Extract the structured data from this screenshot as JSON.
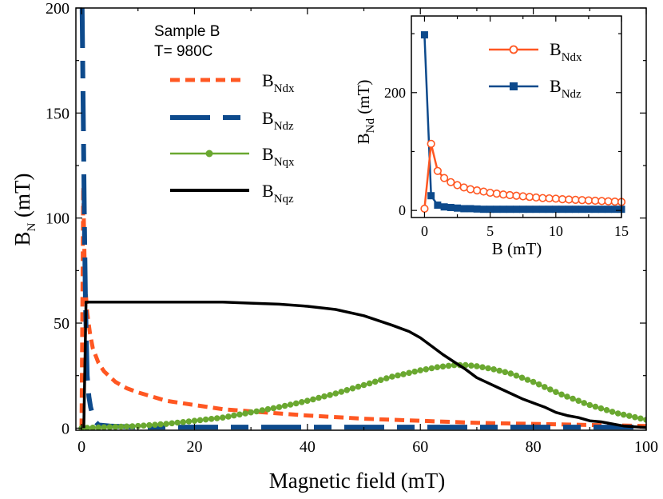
{
  "chart_data": [
    {
      "type": "line",
      "annotation_lines": [
        "Sample B",
        "T= 980C"
      ],
      "xlabel": "Magnetic field (mT)",
      "ylabel": {
        "main": "B",
        "sub": "N",
        "rest": " (mT)"
      },
      "xlim": [
        -1,
        100
      ],
      "ylim": [
        -1,
        200
      ],
      "xticks": [
        0,
        20,
        40,
        60,
        80,
        100
      ],
      "yticks": [
        0,
        50,
        100,
        150,
        200
      ],
      "xtick_labels": [
        "0",
        "20",
        "40",
        "60",
        "80",
        "100"
      ],
      "ytick_labels": [
        "0",
        "50",
        "100",
        "150",
        "200"
      ],
      "legend_location": "upper-left",
      "series": [
        {
          "name": "B_Ndx",
          "label_main": "B",
          "label_sub": "Ndx",
          "color": "#ff5722",
          "style": "dotted",
          "x": [
            0,
            0.3,
            0.6,
            1.0,
            1.5,
            2,
            3,
            4,
            6,
            8,
            10,
            15,
            20,
            25,
            30,
            40,
            50,
            60,
            70,
            80,
            90,
            100
          ],
          "y": [
            0,
            115,
            70,
            55,
            45,
            38,
            31,
            27,
            22,
            19,
            17,
            13,
            11,
            9,
            8,
            6,
            4.5,
            3.5,
            2.5,
            2,
            1.5,
            1
          ]
        },
        {
          "name": "B_Ndz",
          "label_main": "B",
          "label_sub": "Ndz",
          "color": "#0d4a8c",
          "style": "dashed",
          "x": [
            0.1,
            0.3,
            0.5,
            0.7,
            1.0,
            1.3,
            1.6,
            2.0,
            2.5,
            3,
            5,
            10,
            20,
            40,
            60,
            80,
            100
          ],
          "y": [
            200,
            150,
            100,
            60,
            25,
            15,
            10,
            6,
            3,
            1.5,
            1,
            0.5,
            0.5,
            0.5,
            0.5,
            0.5,
            0.5
          ]
        },
        {
          "name": "B_Nqx",
          "label_main": "B",
          "label_sub": "Nqx",
          "color": "#6aa830",
          "style": "line-markers",
          "x": [
            0,
            5,
            10,
            15,
            20,
            25,
            30,
            35,
            40,
            45,
            50,
            55,
            60,
            63,
            66,
            68,
            70,
            73,
            76,
            80,
            85,
            90,
            95,
            100
          ],
          "y": [
            0,
            0.5,
            1,
            2,
            3.5,
            5,
            7.5,
            10,
            13,
            16.5,
            20.5,
            24.5,
            27.5,
            29,
            30,
            30,
            29.5,
            28,
            26,
            22,
            16,
            11,
            7,
            4
          ]
        },
        {
          "name": "B_Nqz",
          "label_main": "B",
          "label_sub": "Nqz",
          "color": "#000000",
          "style": "solid",
          "x": [
            0.4,
            0.8,
            1.2,
            2,
            5,
            10,
            20,
            25,
            30,
            35,
            40,
            45,
            50,
            55,
            58,
            60,
            62,
            64,
            66,
            68,
            70,
            72,
            74,
            76,
            78,
            80,
            82,
            84,
            86,
            88,
            90,
            92,
            94,
            96,
            98,
            100
          ],
          "y": [
            0,
            60,
            60,
            60,
            60,
            60,
            60,
            60,
            59.5,
            59,
            58,
            56.5,
            53.5,
            49,
            46,
            43,
            39,
            35,
            31.5,
            28,
            24,
            21.5,
            19,
            16.5,
            14,
            12,
            10,
            7.5,
            6,
            5,
            3.5,
            3,
            2,
            1,
            0.6,
            0.3
          ]
        }
      ]
    },
    {
      "type": "line",
      "role": "inset",
      "xlabel": "B (mT)",
      "ylabel": {
        "main": "B",
        "sub": "Nd",
        "rest": " (mT)"
      },
      "xlim": [
        -1,
        15
      ],
      "ylim": [
        -12,
        330
      ],
      "xticks": [
        0,
        5,
        10,
        15
      ],
      "yticks": [
        0,
        200
      ],
      "xtick_labels": [
        "0",
        "5",
        "10",
        "15"
      ],
      "ytick_labels": [
        "0",
        "200"
      ],
      "legend_location": "upper-right",
      "series": [
        {
          "name": "B_Ndx",
          "label_main": "B",
          "label_sub": "Ndx",
          "color": "#ff5722",
          "marker": "circle-open",
          "x": [
            0,
            0.5,
            1,
            1.5,
            2,
            2.5,
            3,
            3.5,
            4,
            4.5,
            5,
            5.5,
            6,
            6.5,
            7,
            7.5,
            8,
            8.5,
            9,
            9.5,
            10,
            10.5,
            11,
            11.5,
            12,
            12.5,
            13,
            13.5,
            14,
            14.5,
            15
          ],
          "y": [
            3,
            113,
            67,
            55,
            48,
            43,
            39,
            36,
            34,
            32,
            30,
            28.5,
            27,
            26,
            25,
            24,
            23,
            22,
            21,
            20.5,
            20,
            19,
            18.5,
            18,
            17.5,
            17,
            16.5,
            16,
            15.5,
            15,
            14.5
          ]
        },
        {
          "name": "B_Ndz",
          "label_main": "B",
          "label_sub": "Ndz",
          "color": "#0d4a8c",
          "marker": "square",
          "x": [
            0,
            0.5,
            1,
            1.5,
            2,
            2.5,
            3,
            3.5,
            4,
            4.5,
            5,
            5.5,
            6,
            6.5,
            7,
            7.5,
            8,
            8.5,
            9,
            9.5,
            10,
            10.5,
            11,
            11.5,
            12,
            12.5,
            13,
            13.5,
            14,
            14.5,
            15
          ],
          "y": [
            298,
            25,
            9,
            6,
            5,
            4,
            3,
            3,
            2.5,
            2,
            2,
            2,
            2,
            2,
            2,
            2,
            2,
            2,
            2,
            2,
            2,
            2,
            2,
            2,
            2,
            2,
            2,
            2,
            2,
            2,
            2
          ]
        }
      ]
    }
  ]
}
